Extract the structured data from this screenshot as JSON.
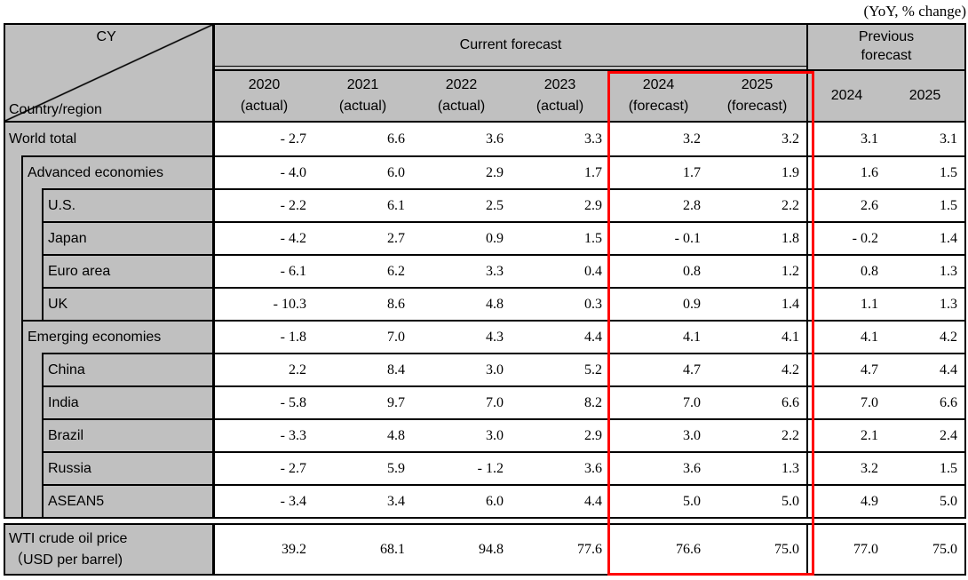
{
  "caption": "(YoY, % change)",
  "corner": {
    "top_label": "CY",
    "bottom_label": "Country/region"
  },
  "header": {
    "current_forecast": "Current forecast",
    "previous_forecast": "Previous forecast"
  },
  "columns": [
    {
      "year": "2020",
      "note": "(actual)"
    },
    {
      "year": "2021",
      "note": "(actual)"
    },
    {
      "year": "2022",
      "note": "(actual)"
    },
    {
      "year": "2023",
      "note": "(actual)"
    },
    {
      "year": "2024",
      "note": "(forecast)"
    },
    {
      "year": "2025",
      "note": "(forecast)"
    },
    {
      "year": "2024",
      "note": ""
    },
    {
      "year": "2025",
      "note": ""
    }
  ],
  "rows": [
    {
      "label": "World total",
      "level": 0,
      "values": [
        "- 2.7",
        "6.6",
        "3.6",
        "3.3",
        "3.2",
        "3.2",
        "3.1",
        "3.1"
      ]
    },
    {
      "label": "Advanced economies",
      "level": 1,
      "values": [
        "- 4.0",
        "6.0",
        "2.9",
        "1.7",
        "1.7",
        "1.9",
        "1.6",
        "1.5"
      ]
    },
    {
      "label": "U.S.",
      "level": 2,
      "values": [
        "- 2.2",
        "6.1",
        "2.5",
        "2.9",
        "2.8",
        "2.2",
        "2.6",
        "1.5"
      ]
    },
    {
      "label": "Japan",
      "level": 2,
      "values": [
        "- 4.2",
        "2.7",
        "0.9",
        "1.5",
        "- 0.1",
        "1.8",
        "- 0.2",
        "1.4"
      ]
    },
    {
      "label": "Euro area",
      "level": 2,
      "values": [
        "- 6.1",
        "6.2",
        "3.3",
        "0.4",
        "0.8",
        "1.2",
        "0.8",
        "1.3"
      ]
    },
    {
      "label": "UK",
      "level": 2,
      "values": [
        "- 10.3",
        "8.6",
        "4.8",
        "0.3",
        "0.9",
        "1.4",
        "1.1",
        "1.3"
      ]
    },
    {
      "label": "Emerging economies",
      "level": 1,
      "values": [
        "- 1.8",
        "7.0",
        "4.3",
        "4.4",
        "4.1",
        "4.1",
        "4.1",
        "4.2"
      ]
    },
    {
      "label": "China",
      "level": 2,
      "values": [
        "2.2",
        "8.4",
        "3.0",
        "5.2",
        "4.7",
        "4.2",
        "4.7",
        "4.4"
      ]
    },
    {
      "label": "India",
      "level": 2,
      "values": [
        "- 5.8",
        "9.7",
        "7.0",
        "8.2",
        "7.0",
        "6.6",
        "7.0",
        "6.6"
      ]
    },
    {
      "label": "Brazil",
      "level": 2,
      "values": [
        "- 3.3",
        "4.8",
        "3.0",
        "2.9",
        "3.0",
        "2.2",
        "2.1",
        "2.4"
      ]
    },
    {
      "label": "Russia",
      "level": 2,
      "values": [
        "- 2.7",
        "5.9",
        "- 1.2",
        "3.6",
        "3.6",
        "1.3",
        "3.2",
        "1.5"
      ]
    },
    {
      "label": "ASEAN5",
      "level": 2,
      "values": [
        "- 3.4",
        "3.4",
        "6.0",
        "4.4",
        "5.0",
        "5.0",
        "4.9",
        "5.0"
      ]
    }
  ],
  "wti": {
    "label_line1": "WTI crude oil price",
    "label_line2": "（USD per barrel)",
    "values": [
      "39.2",
      "68.1",
      "94.8",
      "77.6",
      "76.6",
      "75.0",
      "77.0",
      "75.0"
    ]
  },
  "colors": {
    "header_bg": "#c0c0c0",
    "grid_border": "#000000",
    "highlight_box": "#ff0000"
  }
}
